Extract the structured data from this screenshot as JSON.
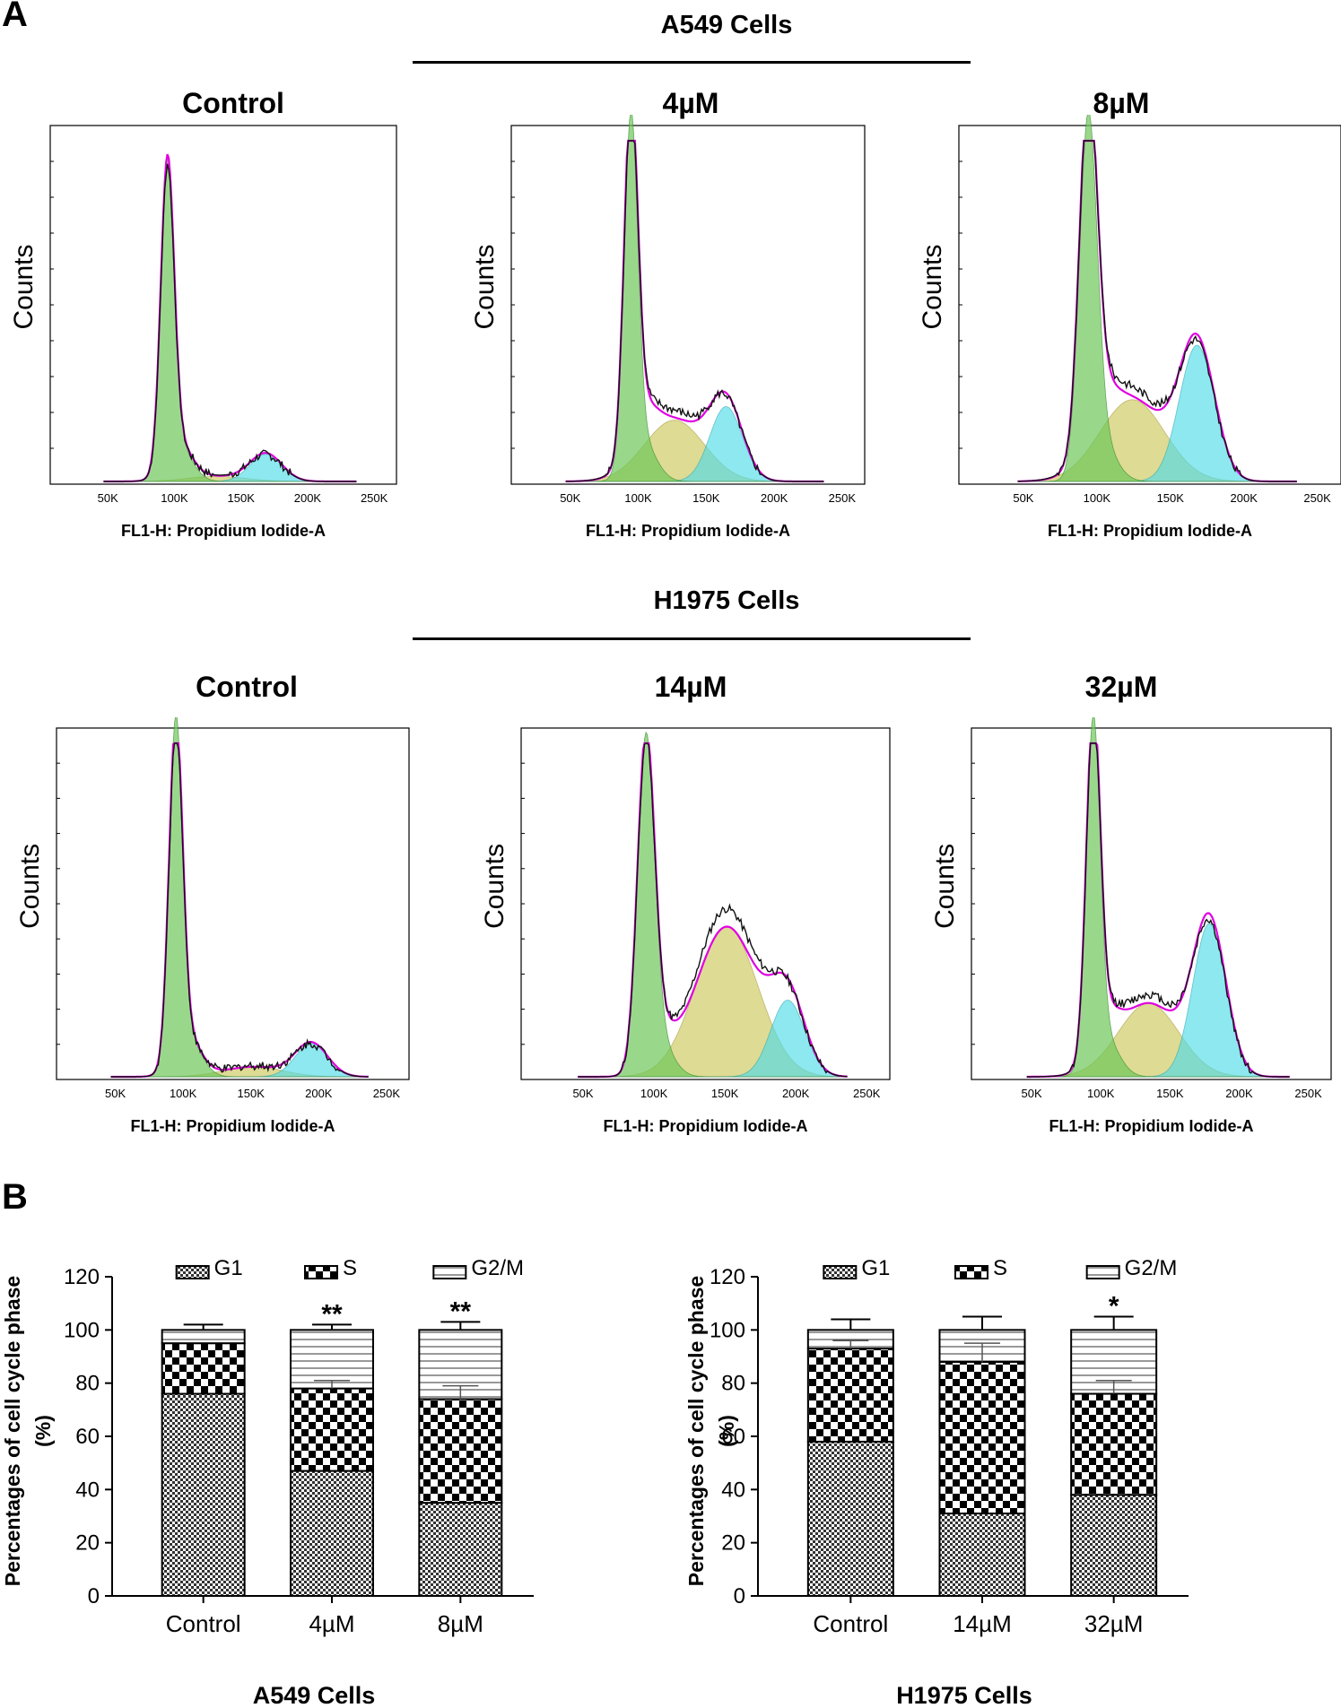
{
  "panel_a": {
    "label": "A",
    "groups": [
      {
        "cell_line": "A549 Cells",
        "histograms": [
          {
            "condition": "Control",
            "ylabel": "Counts",
            "xlabel": "FL1-H: Propidium Iodide-A",
            "xticks": [
              "50K",
              "100K",
              "150K",
              "200K",
              "250K"
            ],
            "g1_peak": 88,
            "s_peak": 1.5,
            "g2_peak": 8,
            "g2_center": 162,
            "s_center": 125,
            "g1_width": 5,
            "g2_width": 12
          },
          {
            "condition": "4µM",
            "ylabel": "Counts",
            "xlabel": "FL1-H: Propidium Iodide-A",
            "xticks": [
              "50K",
              "100K",
              "150K",
              "200K",
              "250K"
            ],
            "g1_peak": 100,
            "s_peak": 18,
            "g2_peak": 22,
            "g2_center": 158,
            "s_center": 120,
            "g1_width": 5,
            "g2_width": 12
          },
          {
            "condition": "8µM",
            "ylabel": "Counts",
            "xlabel": "FL1-H: Propidium Iodide-A",
            "xticks": [
              "50K",
              "100K",
              "150K",
              "200K",
              "250K"
            ],
            "g1_peak": 100,
            "s_peak": 24,
            "g2_peak": 40,
            "g2_center": 162,
            "s_center": 118,
            "g1_width": 6,
            "g2_width": 12
          }
        ]
      },
      {
        "cell_line": "H1975 Cells",
        "histograms": [
          {
            "condition": "Control",
            "ylabel": "Counts",
            "xlabel": "FL1-H: Propidium Iodide-A",
            "xticks": [
              "50K",
              "100K",
              "150K",
              "200K",
              "250K"
            ],
            "g1_peak": 100,
            "s_peak": 3,
            "g2_peak": 10,
            "g2_center": 188,
            "s_center": 145,
            "g1_width": 5,
            "g2_width": 12
          },
          {
            "condition": "14µM",
            "ylabel": "Counts",
            "xlabel": "FL1-H: Propidium Iodide-A",
            "xticks": [
              "50K",
              "100K",
              "150K",
              "200K",
              "250K"
            ],
            "g1_peak": 95,
            "s_peak": 45,
            "g2_peak": 23,
            "g2_center": 188,
            "s_center": 145,
            "g1_width": 6,
            "g2_width": 12
          },
          {
            "condition": "32µM",
            "ylabel": "Counts",
            "xlabel": "FL1-H: Propidium Iodide-A",
            "xticks": [
              "50K",
              "100K",
              "150K",
              "200K",
              "250K"
            ],
            "g1_peak": 100,
            "s_peak": 22,
            "g2_peak": 46,
            "g2_center": 172,
            "s_center": 128,
            "g1_width": 5,
            "g2_width": 12
          }
        ]
      }
    ]
  },
  "panel_b": {
    "label": "B",
    "charts": [
      {
        "title": "A549 Cells",
        "ylabel_line1": "Percentages of cell cycle phase",
        "ylabel_line2": "(%)",
        "legend": [
          "G1",
          "S",
          "G2/M"
        ],
        "categories": [
          "Control",
          "4µM",
          "8µM"
        ],
        "significance": [
          "",
          "**",
          "**"
        ]
      },
      {
        "title": "H1975 Cells",
        "ylabel_line1": "Percentages of cell cycle phase",
        "ylabel_line2": "(%)",
        "legend": [
          "G1",
          "S",
          "G2/M"
        ],
        "categories": [
          "Control",
          "14µM",
          "32µM"
        ],
        "significance": [
          "",
          "",
          "*"
        ]
      }
    ]
  },
  "chart_data": [
    {
      "type": "bar",
      "stacked": true,
      "title": "A549 Cells",
      "ylabel": "Percentages of cell cycle phase (%)",
      "categories": [
        "Control",
        "4µM",
        "8µM"
      ],
      "series": [
        {
          "name": "G1",
          "values": [
            76,
            47,
            35
          ]
        },
        {
          "name": "S",
          "values": [
            19,
            31,
            39
          ]
        },
        {
          "name": "G2/M",
          "values": [
            5,
            22,
            26
          ]
        }
      ],
      "errors": {
        "total": [
          2,
          2,
          3
        ],
        "G1_S_boundary": [
          0,
          3,
          5
        ]
      },
      "significance": [
        "",
        "**",
        "**"
      ],
      "ylim": [
        0,
        120
      ],
      "yticks": [
        0,
        20,
        40,
        60,
        80,
        100,
        120
      ]
    },
    {
      "type": "bar",
      "stacked": true,
      "title": "H1975 Cells",
      "ylabel": "Percentages of cell cycle phase (%)",
      "categories": [
        "Control",
        "14µM",
        "32µM"
      ],
      "series": [
        {
          "name": "G1",
          "values": [
            58,
            31,
            38
          ]
        },
        {
          "name": "S",
          "values": [
            35,
            57,
            38
          ]
        },
        {
          "name": "G2/M",
          "values": [
            7,
            12,
            24
          ]
        }
      ],
      "errors": {
        "total": [
          4,
          5,
          5
        ],
        "G1_S_boundary": [
          3,
          7,
          5
        ]
      },
      "significance": [
        "",
        "",
        "*"
      ],
      "ylim": [
        0,
        120
      ],
      "yticks": [
        0,
        20,
        40,
        60,
        80,
        100,
        120
      ]
    }
  ]
}
